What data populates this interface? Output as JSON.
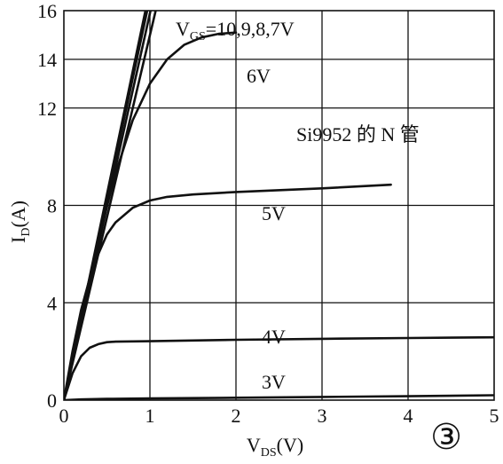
{
  "chart_data": {
    "type": "line",
    "xlabel": {
      "main": "V",
      "sub": "DS",
      "tail": "(V)"
    },
    "ylabel": {
      "main": "I",
      "sub": "D",
      "tail": "(A)"
    },
    "xlim": [
      0,
      5
    ],
    "ylim": [
      0,
      16
    ],
    "xticks": [
      0,
      1,
      2,
      3,
      4,
      5
    ],
    "yticks": [
      0,
      4,
      8,
      12,
      14,
      16
    ],
    "grid": true,
    "annotation": "Si9952 的 N 管",
    "figure_number": "③",
    "curve_labels": {
      "vgs_top": {
        "main": "V",
        "sub": "GS",
        "tail": "=10,9,8,7V"
      },
      "v6": "6V",
      "v5": "5V",
      "v4": "4V",
      "v3": "3V"
    },
    "series": [
      {
        "name": "10V",
        "x": [
          0,
          0.96
        ],
        "y": [
          0,
          16.2
        ]
      },
      {
        "name": "9V",
        "x": [
          0,
          0.98
        ],
        "y": [
          0,
          16.2
        ]
      },
      {
        "name": "8V",
        "x": [
          0,
          1.02
        ],
        "y": [
          0,
          16.2
        ]
      },
      {
        "name": "7V",
        "x": [
          0,
          1.08
        ],
        "y": [
          0,
          16.2
        ]
      },
      {
        "name": "6V",
        "x": [
          0,
          0.2,
          0.4,
          0.6,
          0.8,
          1.0,
          1.2,
          1.4,
          1.6,
          1.8,
          2.0
        ],
        "y": [
          0,
          3.4,
          6.6,
          9.3,
          11.5,
          13.0,
          14.0,
          14.6,
          14.9,
          15.05,
          15.1
        ]
      },
      {
        "name": "5V",
        "x": [
          0,
          0.1,
          0.2,
          0.3,
          0.4,
          0.5,
          0.6,
          0.8,
          1.0,
          1.2,
          1.5,
          2.0,
          3.0,
          3.8
        ],
        "y": [
          0,
          2.0,
          3.7,
          5.0,
          6.0,
          6.8,
          7.3,
          7.9,
          8.2,
          8.35,
          8.45,
          8.55,
          8.7,
          8.85
        ]
      },
      {
        "name": "4V",
        "x": [
          0,
          0.1,
          0.2,
          0.3,
          0.4,
          0.5,
          0.6,
          1.0,
          2.0,
          3.0,
          4.0,
          5.0
        ],
        "y": [
          0,
          1.1,
          1.8,
          2.15,
          2.3,
          2.38,
          2.4,
          2.42,
          2.48,
          2.52,
          2.55,
          2.58
        ]
      },
      {
        "name": "3V",
        "x": [
          0,
          0.2,
          0.5,
          1.0,
          2.0,
          3.0,
          4.0,
          5.0
        ],
        "y": [
          0,
          0.03,
          0.05,
          0.07,
          0.1,
          0.13,
          0.16,
          0.2
        ]
      }
    ]
  }
}
